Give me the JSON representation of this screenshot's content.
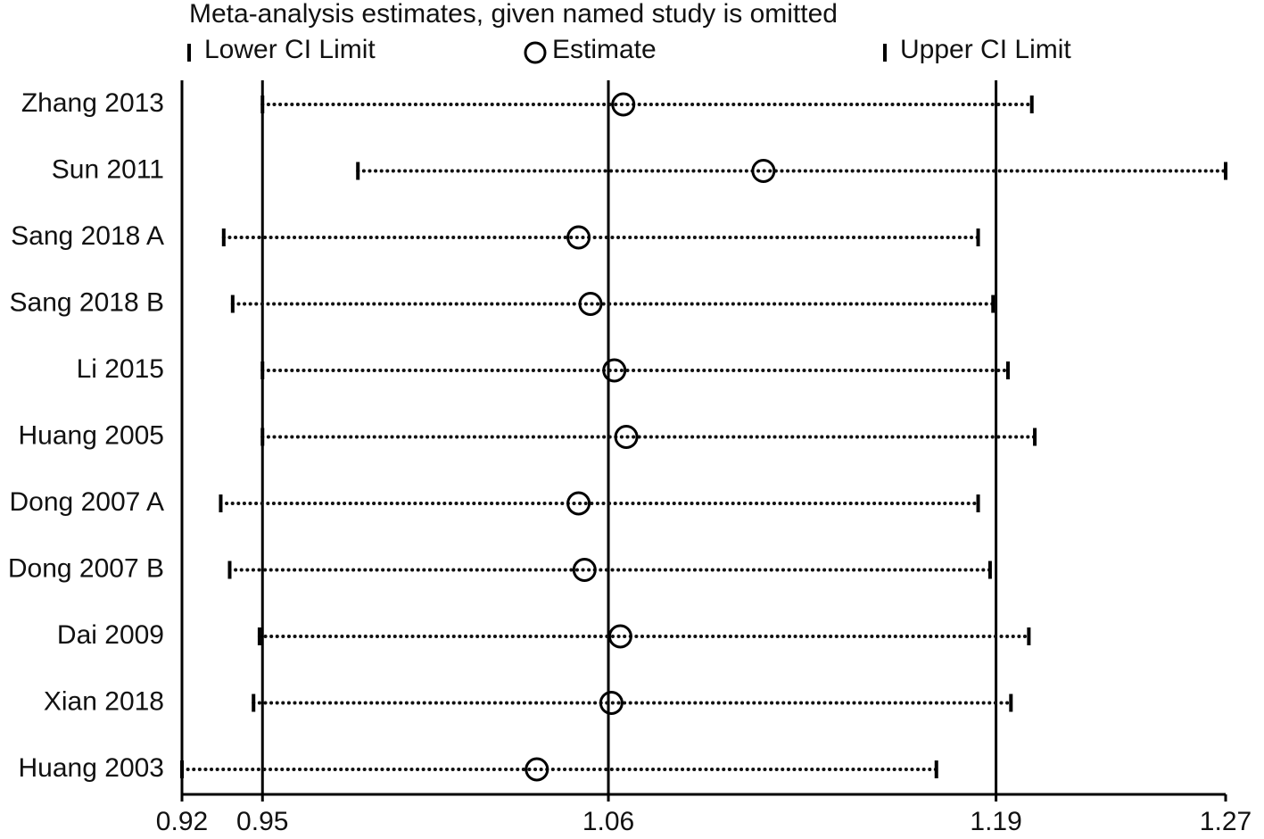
{
  "chart_data": {
    "type": "forest",
    "title": "Meta-analysis estimates, given named study is omitted",
    "categories": [
      "Zhang 2013",
      "Sun 2011",
      "Sang 2018 A",
      "Sang 2018 B",
      "Li 2015",
      "Huang 2005",
      "Dong 2007 A",
      "Dong 2007 B",
      "Dai 2009",
      "Xian  2018",
      "Huang 2003"
    ],
    "series": [
      {
        "name": "Lower CI Limit",
        "color": "#000000",
        "values": [
          0.947,
          0.979,
          0.934,
          0.937,
          0.947,
          0.947,
          0.933,
          0.936,
          0.946,
          0.944,
          0.92
        ]
      },
      {
        "name": "Estimate",
        "color": "#000000",
        "values": [
          1.068,
          1.115,
          1.053,
          1.057,
          1.065,
          1.069,
          1.053,
          1.055,
          1.067,
          1.064,
          1.039
        ]
      },
      {
        "name": "Upper CI Limit",
        "color": "#000000",
        "values": [
          1.205,
          1.27,
          1.187,
          1.192,
          1.197,
          1.206,
          1.187,
          1.191,
          1.204,
          1.198,
          1.173
        ]
      }
    ],
    "xlim": [
      0.92,
      1.27
    ],
    "xticks": [
      0.92,
      {
        "value": 0.947,
        "label": "0.95"
      },
      {
        "value": 1.063,
        "label": "1.06"
      },
      {
        "value": 1.193,
        "label": "1.19"
      },
      1.27
    ]
  }
}
